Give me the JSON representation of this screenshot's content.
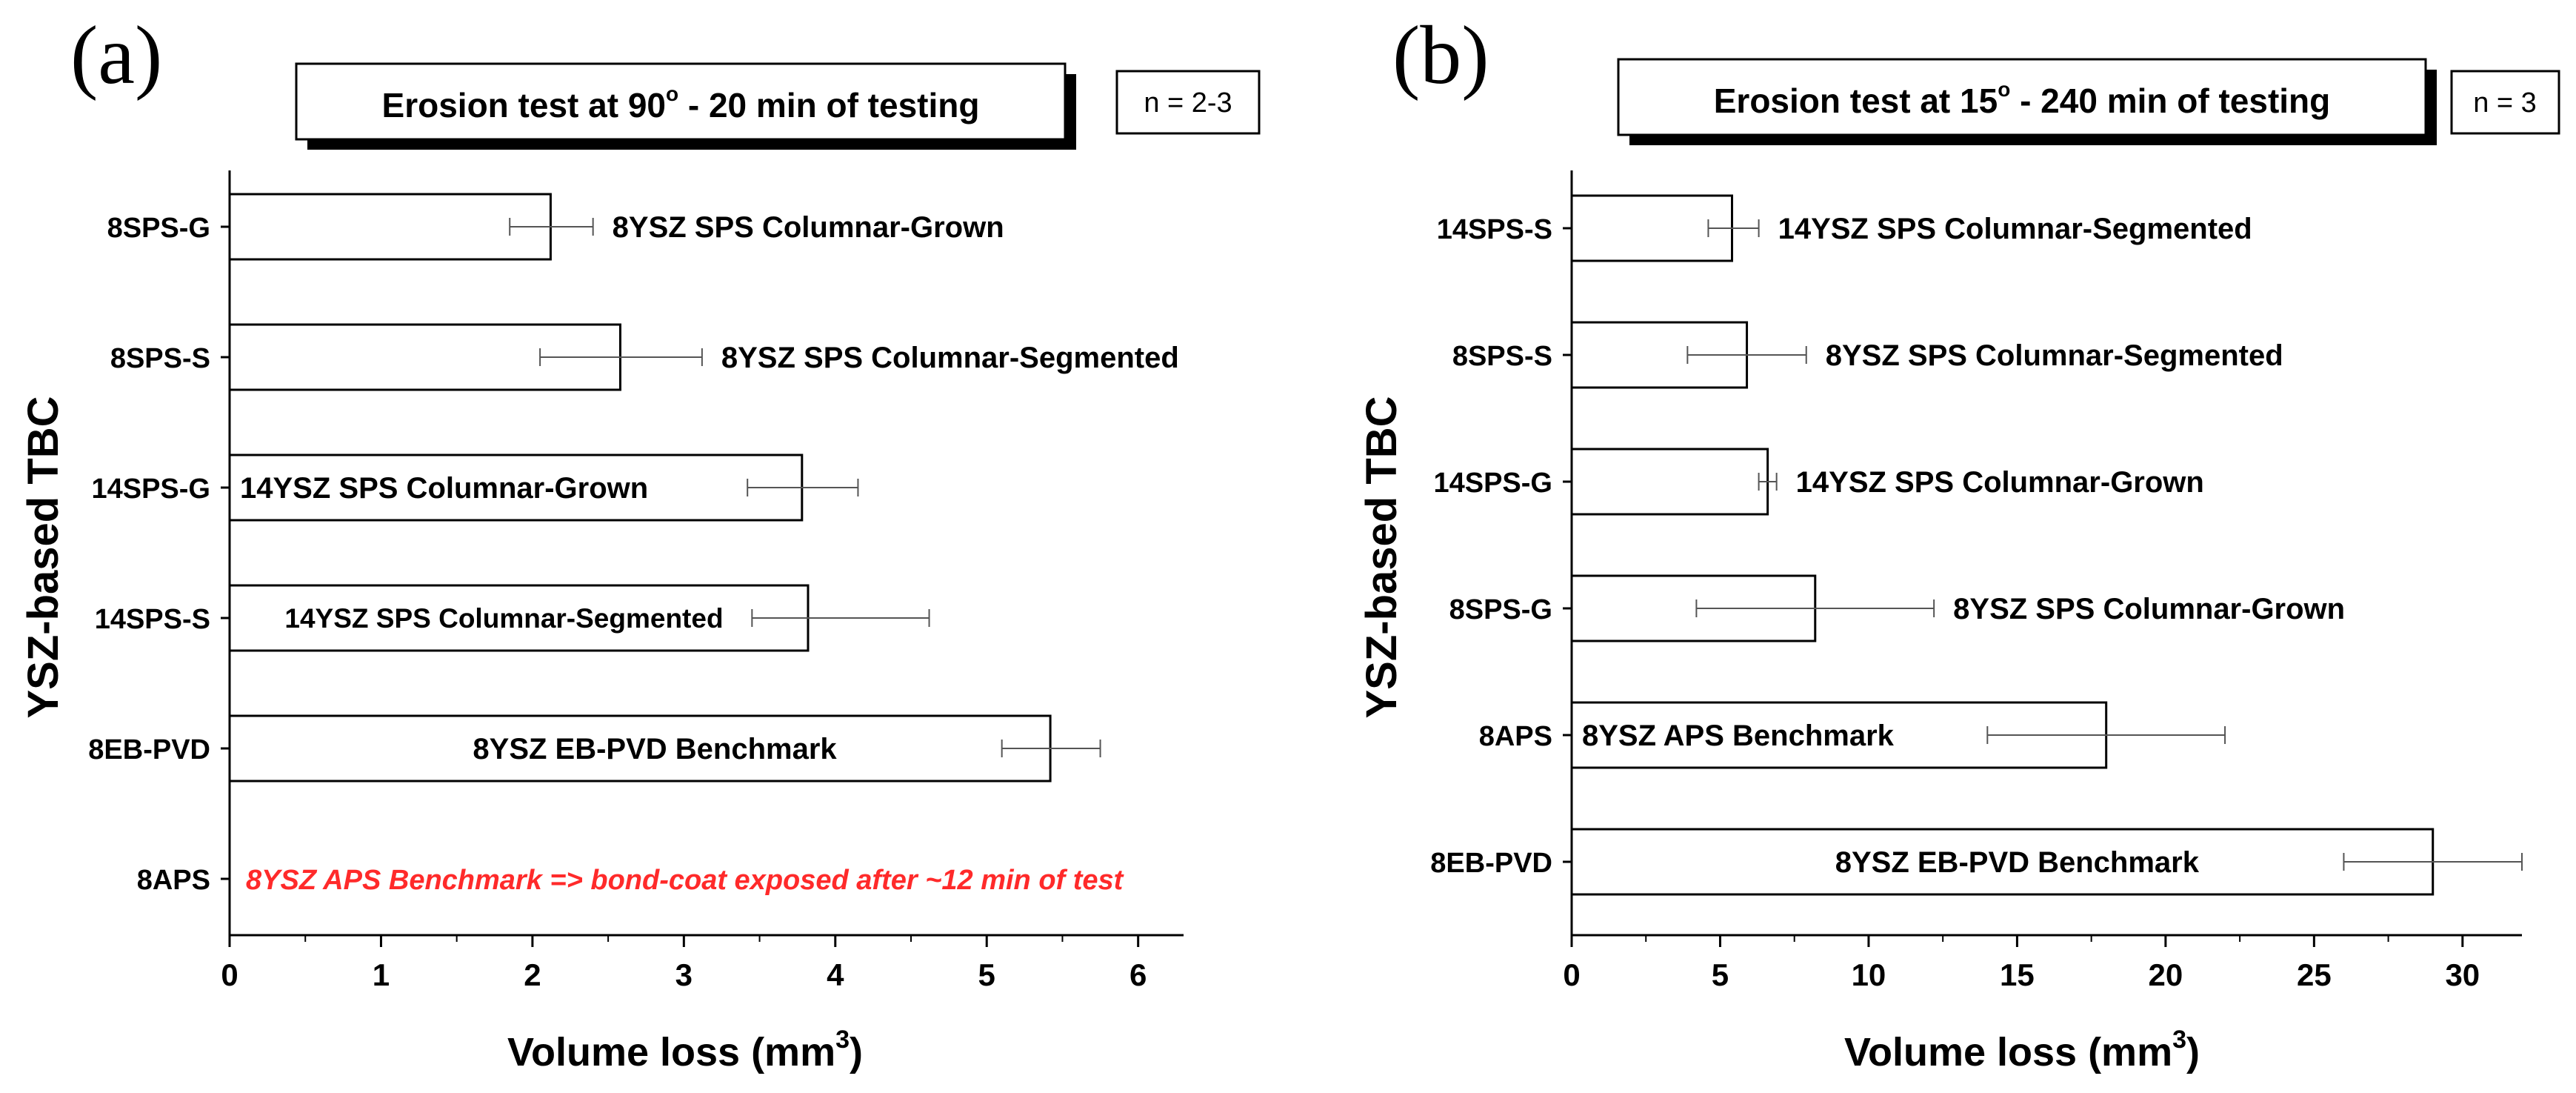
{
  "colors": {
    "axis": "#000000",
    "bar_fill": "#ffffff",
    "bar_stroke": "#000000",
    "error_bar": "#555555",
    "annotation_red": "#ff2a2a",
    "title_shadow": "#000000"
  },
  "panels": [
    {
      "panel_label": "(a)",
      "title_box": {
        "text": "Erosion test at 90",
        "degree": "o",
        "suffix": " - 20 min of testing"
      },
      "n_label": "n = 2-3"
    },
    {
      "panel_label": "(b)",
      "title_box": {
        "text": "Erosion test at 15",
        "degree": "o",
        "suffix": " - 240 min of testing"
      },
      "n_label": "n = 3"
    }
  ],
  "chart_data": [
    {
      "type": "bar",
      "orientation": "horizontal",
      "title": "Erosion test at 90° - 20 min of testing",
      "ylabel": "YSZ-based TBC",
      "xlabel": "Volume loss (mm",
      "xlabel_sup": "3",
      "xlabel_close": ")",
      "xlim": [
        0,
        6.3
      ],
      "xticks": [
        0,
        1,
        2,
        3,
        4,
        5,
        6
      ],
      "tick_labels": [
        "0",
        "1",
        "2",
        "3",
        "4",
        "5",
        "6"
      ],
      "categories": [
        "8SPS-G",
        "8SPS-S",
        "14SPS-G",
        "14SPS-S",
        "8EB-PVD",
        "8APS"
      ],
      "values": [
        2.12,
        2.58,
        3.78,
        3.82,
        5.42,
        null
      ],
      "errors": [
        [
          1.85,
          2.4
        ],
        [
          2.05,
          3.12
        ],
        [
          3.42,
          4.15
        ],
        [
          3.45,
          4.62
        ],
        [
          5.1,
          5.75
        ],
        null
      ],
      "bar_labels": [
        "8YSZ SPS Columnar-Grown",
        "8YSZ SPS Columnar-Segmented",
        "14YSZ SPS Columnar-Grown",
        "14YSZ SPS Columnar-Segmented",
        "8YSZ EB-PVD Benchmark",
        "8YSZ APS Benchmark => bond-coat exposed after ~12 min of test"
      ]
    },
    {
      "type": "bar",
      "orientation": "horizontal",
      "title": "Erosion test at 15° - 240 min of testing",
      "ylabel": "YSZ-based TBC",
      "xlabel": "Volume loss (mm",
      "xlabel_sup": "3",
      "xlabel_close": ")",
      "xlim": [
        0,
        32
      ],
      "xticks": [
        0,
        5,
        10,
        15,
        20,
        25,
        30
      ],
      "tick_labels": [
        "0",
        "5",
        "10",
        "15",
        "20",
        "25",
        "30"
      ],
      "categories": [
        "14SPS-S",
        "8SPS-S",
        "14SPS-G",
        "8SPS-G",
        "8APS",
        "8EB-PVD"
      ],
      "values": [
        5.4,
        5.9,
        6.6,
        8.2,
        18.0,
        29.0
      ],
      "errors": [
        [
          4.6,
          6.3
        ],
        [
          3.9,
          7.9
        ],
        [
          6.3,
          6.9
        ],
        [
          4.2,
          12.2
        ],
        [
          14.0,
          22.0
        ],
        [
          26.0,
          32.0
        ]
      ],
      "bar_labels": [
        "14YSZ SPS Columnar-Segmented",
        "8YSZ SPS Columnar-Segmented",
        "14YSZ SPS Columnar-Grown",
        "8YSZ SPS Columnar-Grown",
        "8YSZ APS Benchmark",
        "8YSZ EB-PVD Benchmark"
      ]
    }
  ]
}
